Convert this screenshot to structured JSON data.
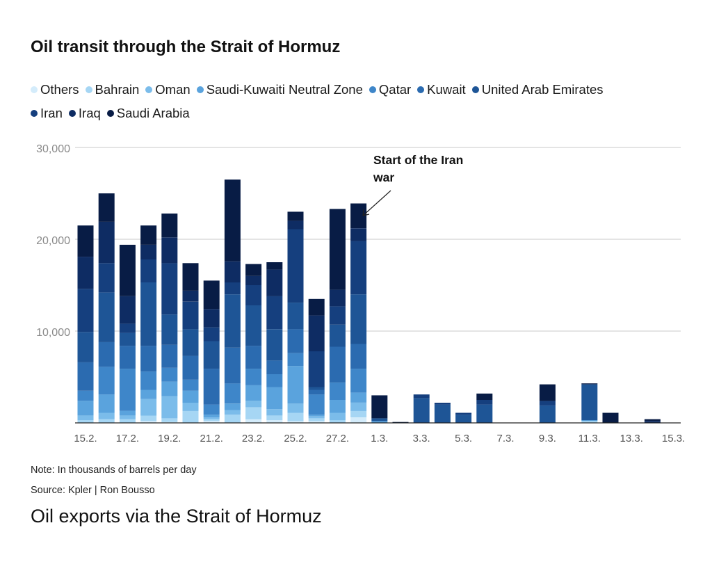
{
  "chart_data": {
    "type": "bar",
    "stacked": true,
    "title": "Oil transit through the Strait of Hormuz",
    "ylim": [
      0,
      30000
    ],
    "y_ticks": [
      "30,000",
      "20,000",
      "10,000"
    ],
    "y_tick_values": [
      30000,
      20000,
      10000
    ],
    "grid": true,
    "legend_position": "top",
    "categories": [
      "15.2.",
      "16.2.",
      "17.2.",
      "18.2.",
      "19.2.",
      "20.2.",
      "21.2.",
      "22.2.",
      "23.2.",
      "24.2.",
      "25.2.",
      "26.2.",
      "27.2.",
      "28.2.",
      "1.3.",
      "2.3.",
      "3.3.",
      "4.3.",
      "5.3.",
      "6.3.",
      "7.3.",
      "8.3.",
      "9.3.",
      "10.3.",
      "11.3.",
      "12.3.",
      "13.3.",
      "14.3.",
      "15.3."
    ],
    "x_tick_labels": [
      "15.2.",
      "17.2.",
      "19.2.",
      "21.2.",
      "23.2.",
      "25.2.",
      "27.2.",
      "1.3.",
      "3.3.",
      "5.3.",
      "7.3.",
      "9.3.",
      "11.3.",
      "13.3.",
      "15.3."
    ],
    "series": [
      {
        "name": "Others",
        "color": "#d4ecfb",
        "values": [
          0,
          0,
          0,
          200,
          100,
          0,
          200,
          0,
          400,
          300,
          200,
          200,
          0,
          600,
          0,
          0,
          0,
          0,
          0,
          0,
          0,
          0,
          0,
          0,
          0,
          0,
          0,
          0,
          0
        ]
      },
      {
        "name": "Bahrain",
        "color": "#a6d6f4",
        "values": [
          300,
          400,
          400,
          600,
          400,
          1300,
          200,
          900,
          1300,
          500,
          900,
          300,
          300,
          700,
          0,
          0,
          0,
          0,
          0,
          0,
          0,
          0,
          0,
          0,
          200,
          0,
          0,
          0,
          0
        ]
      },
      {
        "name": "Oman",
        "color": "#7bbcea",
        "values": [
          500,
          700,
          400,
          1800,
          2400,
          900,
          200,
          500,
          700,
          700,
          1000,
          200,
          800,
          900,
          0,
          0,
          0,
          0,
          0,
          0,
          0,
          0,
          0,
          0,
          0,
          0,
          0,
          0,
          0
        ]
      },
      {
        "name": "Saudi-Kuwaiti Neutral Zone",
        "color": "#5aa3dd",
        "values": [
          1600,
          2000,
          500,
          1000,
          1600,
          1300,
          300,
          700,
          1700,
          2400,
          4100,
          200,
          1400,
          1100,
          200,
          0,
          0,
          0,
          0,
          0,
          0,
          0,
          0,
          0,
          100,
          0,
          0,
          0,
          0
        ]
      },
      {
        "name": "Qatar",
        "color": "#3e86c9",
        "values": [
          1100,
          3000,
          4600,
          2000,
          1500,
          1200,
          1100,
          2200,
          1800,
          1400,
          1400,
          2200,
          1900,
          2600,
          0,
          0,
          0,
          0,
          0,
          0,
          0,
          0,
          0,
          0,
          0,
          0,
          0,
          0,
          0
        ]
      },
      {
        "name": "Kuwait",
        "color": "#2b6bb0",
        "values": [
          3100,
          2700,
          2500,
          2800,
          2500,
          2600,
          3900,
          3900,
          2500,
          1500,
          2600,
          500,
          3900,
          2700,
          0,
          0,
          0,
          0,
          0,
          0,
          0,
          0,
          0,
          0,
          0,
          0,
          0,
          0,
          0
        ]
      },
      {
        "name": "United Arab Emirates",
        "color": "#1e5596",
        "values": [
          3300,
          5400,
          1400,
          6900,
          3300,
          2900,
          3000,
          5800,
          4400,
          3400,
          2900,
          300,
          2400,
          5400,
          300,
          0,
          2700,
          2000,
          900,
          2000,
          0,
          0,
          1900,
          0,
          3900,
          0,
          0,
          0,
          0
        ]
      },
      {
        "name": "Iran",
        "color": "#153f7e",
        "values": [
          4700,
          3200,
          1000,
          2500,
          5600,
          3000,
          1500,
          1300,
          2200,
          3600,
          8000,
          3900,
          2000,
          5800,
          0,
          0,
          400,
          200,
          200,
          500,
          0,
          0,
          500,
          0,
          0,
          0,
          0,
          0,
          0
        ]
      },
      {
        "name": "Iraq",
        "color": "#0e2c63",
        "values": [
          3500,
          4500,
          3000,
          1600,
          2800,
          1200,
          2000,
          2300,
          1000,
          2900,
          900,
          3900,
          1800,
          1400,
          0,
          0,
          0,
          0,
          0,
          0,
          0,
          0,
          0,
          0,
          0,
          0,
          0,
          200,
          0
        ]
      },
      {
        "name": "Saudi Arabia",
        "color": "#081c45",
        "values": [
          3400,
          3100,
          5600,
          2100,
          2600,
          3000,
          3100,
          8900,
          1300,
          800,
          1000,
          1800,
          8800,
          2700,
          2500,
          100,
          0,
          0,
          0,
          700,
          0,
          0,
          1800,
          0,
          100,
          1100,
          0,
          200,
          0
        ]
      }
    ],
    "annotation": {
      "text_line1": "Start of the Iran",
      "text_line2": "war",
      "category": "28.2."
    }
  },
  "note": "Note: In thousands of barrels per day",
  "source": "Source: Kpler | Ron Bousso",
  "caption": "Oil exports via the Strait of Hormuz"
}
